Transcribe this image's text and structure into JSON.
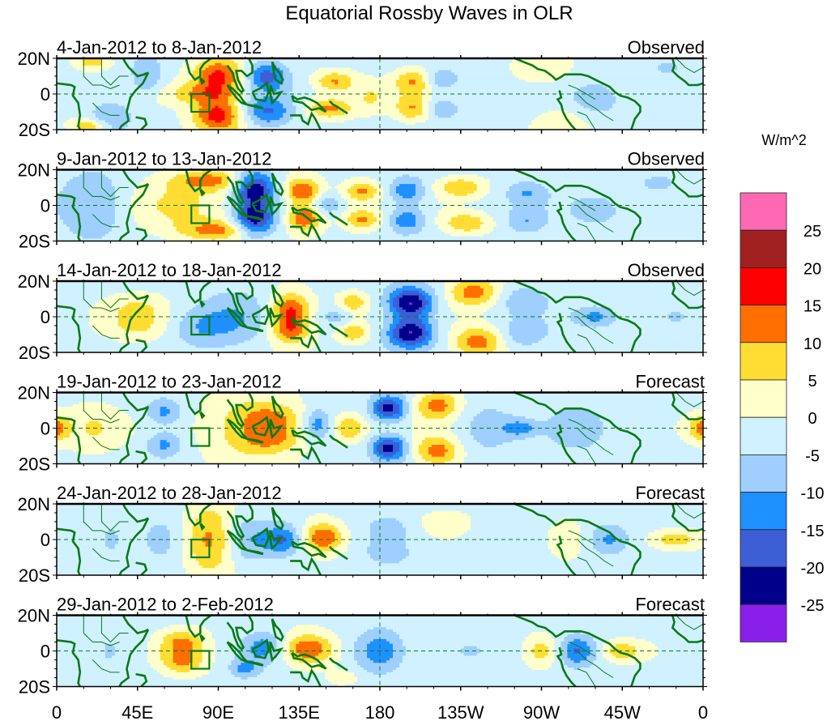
{
  "chart_data": {
    "type": "heatmap",
    "title": "Equatorial Rossby Waves in OLR",
    "units_label": "W/m^2",
    "x_ticks": [
      {
        "lon": 0,
        "label": "0"
      },
      {
        "lon": 45,
        "label": "45E"
      },
      {
        "lon": 90,
        "label": "90E"
      },
      {
        "lon": 135,
        "label": "135E"
      },
      {
        "lon": 180,
        "label": "180"
      },
      {
        "lon": 225,
        "label": "135W"
      },
      {
        "lon": 270,
        "label": "90W"
      },
      {
        "lon": 315,
        "label": "45W"
      },
      {
        "lon": 360,
        "label": "0"
      }
    ],
    "y_ticks": [
      {
        "lat": 20,
        "label": "20N"
      },
      {
        "lat": 0,
        "label": "0"
      },
      {
        "lat": -20,
        "label": "20S"
      }
    ],
    "xlim": [
      0,
      360
    ],
    "ylim": [
      -20,
      20
    ],
    "equator_line": "dashed",
    "dateline_marker_lon": 180,
    "colorbar": {
      "placement": "right",
      "levels": [
        -25,
        -20,
        -15,
        -10,
        -5,
        0,
        5,
        10,
        15,
        20,
        25
      ],
      "colors": [
        "#8B1FEA",
        "#00008B",
        "#3C5FD6",
        "#1E90FF",
        "#9ECFFF",
        "#D0F1FF",
        "#FFFFCC",
        "#FFDD33",
        "#FF6E00",
        "#FF0000",
        "#A02020",
        "#FF69B4"
      ]
    },
    "box_marker": {
      "lon": [
        75,
        85
      ],
      "lat": [
        -10,
        0
      ]
    },
    "panels": [
      {
        "label": "4-Jan-2012 to 8-Jan-2012",
        "status": "Observed",
        "blobs": [
          [
            90,
            10,
            18,
            10,
            7
          ],
          [
            90,
            -12,
            19,
            10,
            7
          ],
          [
            80,
            0,
            9,
            14,
            4
          ],
          [
            117,
            10,
            -16,
            8,
            6
          ],
          [
            117,
            -10,
            -14,
            10,
            6
          ],
          [
            155,
            7,
            12,
            8,
            4
          ],
          [
            152,
            -8,
            13,
            9,
            4
          ],
          [
            198,
            7,
            11,
            7,
            5
          ],
          [
            198,
            -8,
            11,
            7,
            5
          ],
          [
            175,
            -2,
            6,
            6,
            6
          ],
          [
            30,
            -12,
            -9,
            8,
            6
          ],
          [
            50,
            10,
            -9,
            6,
            7
          ],
          [
            18,
            -18,
            12,
            7,
            3
          ],
          [
            20,
            18,
            10,
            7,
            3
          ],
          [
            215,
            8,
            -9,
            6,
            4
          ],
          [
            215,
            -8,
            -9,
            6,
            4
          ],
          [
            270,
            12,
            4,
            12,
            6
          ],
          [
            285,
            -14,
            4,
            12,
            6
          ],
          [
            300,
            -4,
            -6,
            10,
            8
          ],
          [
            340,
            14,
            -4,
            8,
            4
          ]
        ]
      },
      {
        "label": "9-Jan-2012 to 13-Jan-2012",
        "status": "Observed",
        "blobs": [
          [
            110,
            10,
            -22,
            8,
            7
          ],
          [
            110,
            -8,
            -22,
            8,
            7
          ],
          [
            137,
            8,
            17,
            7,
            5
          ],
          [
            138,
            -7,
            17,
            7,
            5
          ],
          [
            85,
            14,
            12,
            14,
            4
          ],
          [
            90,
            -14,
            12,
            14,
            4
          ],
          [
            70,
            0,
            7,
            22,
            12
          ],
          [
            170,
            8,
            12,
            7,
            4
          ],
          [
            170,
            -8,
            12,
            7,
            4
          ],
          [
            195,
            8,
            -13,
            7,
            5
          ],
          [
            195,
            -8,
            -13,
            7,
            5
          ],
          [
            225,
            10,
            11,
            9,
            4
          ],
          [
            228,
            -10,
            11,
            9,
            4
          ],
          [
            20,
            0,
            -10,
            14,
            12
          ],
          [
            150,
            0,
            -8,
            6,
            4
          ],
          [
            262,
            7,
            -8,
            8,
            5
          ],
          [
            262,
            -9,
            -8,
            8,
            5
          ],
          [
            300,
            -3,
            -6,
            10,
            6
          ],
          [
            335,
            12,
            -5,
            9,
            4
          ]
        ]
      },
      {
        "label": "14-Jan-2012 to 18-Jan-2012",
        "status": "Observed",
        "blobs": [
          [
            130,
            5,
            16,
            8,
            6
          ],
          [
            130,
            -7,
            16,
            8,
            6
          ],
          [
            197,
            8,
            -24,
            9,
            6
          ],
          [
            197,
            -9,
            -24,
            9,
            6
          ],
          [
            232,
            14,
            14,
            10,
            6
          ],
          [
            235,
            -14,
            14,
            10,
            6
          ],
          [
            100,
            0,
            -7,
            14,
            12
          ],
          [
            165,
            8,
            10,
            6,
            4
          ],
          [
            165,
            -9,
            10,
            6,
            4
          ],
          [
            80,
            -6,
            -7,
            12,
            8
          ],
          [
            45,
            5,
            6,
            12,
            6
          ],
          [
            45,
            -6,
            6,
            12,
            6
          ],
          [
            300,
            0,
            -9,
            8,
            4
          ],
          [
            345,
            0,
            -6,
            8,
            4
          ],
          [
            155,
            0,
            -6,
            6,
            4
          ],
          [
            260,
            10,
            -7,
            10,
            6
          ],
          [
            260,
            -10,
            -7,
            10,
            6
          ]
        ]
      },
      {
        "label": "19-Jan-2012 to 23-Jan-2012",
        "status": "Forecast",
        "blobs": [
          [
            185,
            11,
            -21,
            7,
            5
          ],
          [
            185,
            -11,
            -21,
            7,
            5
          ],
          [
            212,
            13,
            14,
            9,
            6
          ],
          [
            212,
            -13,
            14,
            9,
            6
          ],
          [
            163,
            0,
            11,
            6,
            5
          ],
          [
            120,
            6,
            12,
            12,
            6
          ],
          [
            120,
            -6,
            12,
            12,
            6
          ],
          [
            60,
            9,
            -10,
            7,
            5
          ],
          [
            60,
            -9,
            -10,
            7,
            5
          ],
          [
            145,
            2,
            -11,
            5,
            6
          ],
          [
            100,
            0,
            7,
            14,
            14
          ],
          [
            20,
            0,
            6,
            10,
            10
          ],
          [
            258,
            0,
            -10,
            6,
            3
          ],
          [
            290,
            0,
            -6,
            12,
            10
          ],
          [
            240,
            0,
            -6,
            12,
            10
          ],
          [
            360,
            0,
            7,
            5,
            5
          ],
          [
            0,
            0,
            7,
            5,
            5
          ]
        ]
      },
      {
        "label": "24-Jan-2012 to 28-Jan-2012",
        "status": "Forecast",
        "blobs": [
          [
            85,
            0,
            13,
            10,
            14
          ],
          [
            148,
            1,
            17,
            8,
            6
          ],
          [
            125,
            0,
            -13,
            8,
            6
          ],
          [
            105,
            0,
            -7,
            8,
            10
          ],
          [
            60,
            0,
            -6,
            10,
            10
          ],
          [
            284,
            0,
            7,
            8,
            7
          ],
          [
            308,
            0,
            -9,
            8,
            6
          ],
          [
            345,
            0,
            9,
            8,
            3
          ],
          [
            185,
            6,
            -6,
            12,
            6
          ],
          [
            185,
            -7,
            -6,
            12,
            6
          ],
          [
            215,
            10,
            5,
            10,
            5
          ],
          [
            30,
            0,
            -5,
            12,
            12
          ]
        ]
      },
      {
        "label": "29-Jan-2012 to 2-Feb-2012",
        "status": "Forecast",
        "blobs": [
          [
            70,
            5,
            12,
            9,
            5
          ],
          [
            70,
            -6,
            12,
            9,
            5
          ],
          [
            140,
            1,
            17,
            10,
            6
          ],
          [
            180,
            0,
            -13,
            10,
            8
          ],
          [
            115,
            2,
            -10,
            8,
            6
          ],
          [
            105,
            -10,
            -10,
            6,
            4
          ],
          [
            270,
            0,
            10,
            7,
            6
          ],
          [
            290,
            0,
            -13,
            7,
            6
          ],
          [
            315,
            0,
            10,
            8,
            4
          ],
          [
            230,
            0,
            -6,
            6,
            3
          ],
          [
            30,
            0,
            -5,
            12,
            12
          ],
          [
            160,
            -15,
            5,
            6,
            3
          ]
        ]
      }
    ]
  }
}
